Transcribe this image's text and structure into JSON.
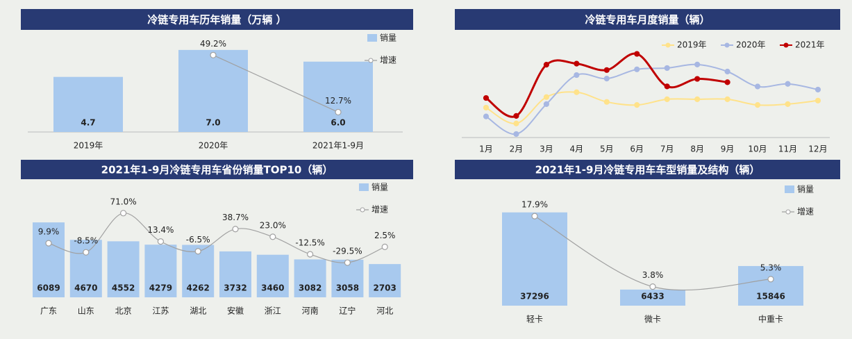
{
  "chart_data": [
    {
      "type": "bar",
      "title": "冷链专用车历年销量（万辆 ）",
      "categories": [
        "2019年",
        "2020年",
        "2021年1-9月"
      ],
      "series": [
        {
          "name": "销量",
          "color": "#a8c9ee",
          "values": [
            4.7,
            7.0,
            6.0
          ],
          "value_labels": [
            "4.7",
            "7.0",
            "6.0"
          ]
        },
        {
          "name": "增速",
          "type": "line",
          "axis": "y2",
          "color": "#a0a0a0",
          "values": [
            null,
            49.2,
            12.7
          ],
          "value_labels": [
            null,
            "49.2%",
            "12.7%"
          ]
        }
      ],
      "ylim": [
        0,
        8
      ],
      "y2lim": [
        0,
        60
      ]
    },
    {
      "type": "line",
      "title": "冷链专用车月度销量（辆）",
      "categories": [
        "1月",
        "2月",
        "3月",
        "4月",
        "5月",
        "6月",
        "7月",
        "8月",
        "9月",
        "10月",
        "11月",
        "12月"
      ],
      "series": [
        {
          "name": "2019年",
          "color": "#ffe28a",
          "values": [
            3400,
            1600,
            4600,
            5150,
            4050,
            3700,
            4350,
            4350,
            4350,
            3700,
            3800,
            4200
          ]
        },
        {
          "name": "2020年",
          "color": "#a7b7e2",
          "values": [
            2400,
            400,
            3800,
            7100,
            6700,
            7750,
            7900,
            8300,
            7500,
            5800,
            6100,
            5450
          ]
        },
        {
          "name": "2021年",
          "color": "#c00000",
          "values": [
            4494,
            2460,
            8277,
            8400,
            7673,
            9508,
            5811,
            6666,
            6286,
            null,
            null,
            null
          ]
        }
      ],
      "smooth": true,
      "ylim": [
        0,
        12000
      ]
    },
    {
      "type": "bar",
      "title": "2021年1-9月冷链专用车省份销量TOP10（辆）",
      "categories": [
        "广东",
        "山东",
        "北京",
        "江苏",
        "湖北",
        "安徽",
        "浙江",
        "河南",
        "辽宁",
        "河北"
      ],
      "series": [
        {
          "name": "销量",
          "color": "#a8c9ee",
          "values": [
            6089,
            4670,
            4552,
            4279,
            4262,
            3732,
            3460,
            3082,
            3058,
            2703
          ]
        },
        {
          "name": "增速",
          "type": "line",
          "axis": "y2",
          "color": "#a0a0a0",
          "values": [
            9.9,
            -8.5,
            71.0,
            13.4,
            -6.5,
            38.7,
            23.0,
            -12.5,
            -29.5,
            2.5
          ],
          "value_labels": [
            "9.9%",
            "-8.5%",
            "71.0%",
            "13.4%",
            "-6.5%",
            "38.7%",
            "23.0%",
            "-12.5%",
            "-29.5%",
            "2.5%"
          ]
        }
      ],
      "smooth": true,
      "ylim": [
        0,
        7000
      ],
      "y2lim": [
        -100,
        75
      ]
    },
    {
      "type": "bar",
      "title": "2021年1-9月冷链专用车车型销量及结构（辆）",
      "categories": [
        "轻卡",
        "微卡",
        "中重卡"
      ],
      "series": [
        {
          "name": "销量",
          "color": "#a8c9ee",
          "values": [
            37296,
            6433,
            15846
          ]
        },
        {
          "name": "增速",
          "type": "line",
          "axis": "y2",
          "color": "#a0a0a0",
          "values": [
            17.9,
            3.8,
            5.3
          ],
          "value_labels": [
            "17.9%",
            "3.8%",
            "5.3%"
          ]
        }
      ],
      "smooth": true,
      "ylim": [
        0,
        40000
      ],
      "y2lim": [
        0,
        20
      ]
    }
  ]
}
